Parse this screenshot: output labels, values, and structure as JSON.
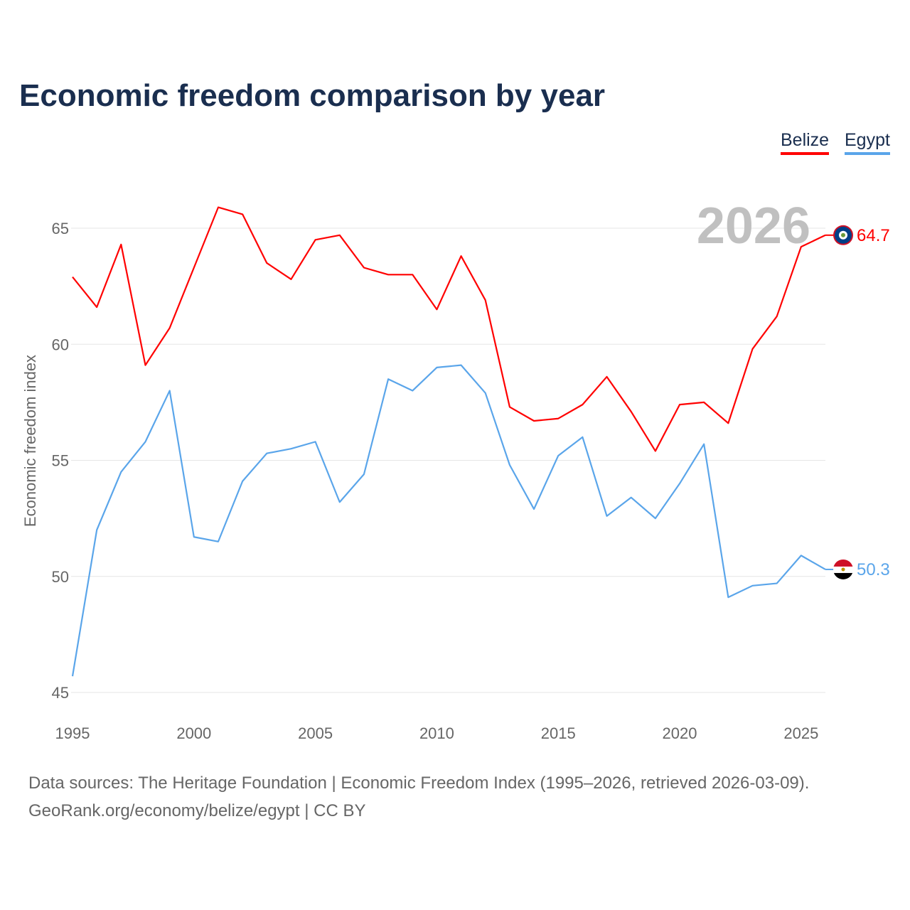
{
  "chart_data": {
    "type": "line",
    "title": "Economic freedom comparison by year",
    "xlabel": "",
    "ylabel": "Economic freedom index",
    "xlim": [
      1995,
      2026
    ],
    "ylim": [
      45,
      67
    ],
    "yticks": [
      45,
      50,
      55,
      60,
      65
    ],
    "xticks": [
      1995,
      2000,
      2005,
      2010,
      2015,
      2020,
      2025
    ],
    "grid": true,
    "legend_position": "top-right",
    "year_label": "2026",
    "x": [
      1995,
      1996,
      1997,
      1998,
      1999,
      2000,
      2001,
      2002,
      2003,
      2004,
      2005,
      2006,
      2007,
      2008,
      2009,
      2010,
      2011,
      2012,
      2013,
      2014,
      2015,
      2016,
      2017,
      2018,
      2019,
      2020,
      2021,
      2022,
      2023,
      2024,
      2025,
      2026
    ],
    "series": [
      {
        "name": "Belize",
        "color": "#ff0000",
        "end_label": "64.7",
        "values": [
          62.9,
          61.6,
          64.3,
          59.1,
          60.7,
          63.3,
          65.9,
          65.6,
          63.5,
          62.8,
          64.5,
          64.7,
          63.3,
          63.0,
          63.0,
          61.5,
          63.8,
          61.9,
          57.3,
          56.7,
          56.8,
          57.4,
          58.6,
          57.1,
          55.4,
          57.4,
          57.5,
          56.6,
          59.8,
          61.2,
          64.2,
          64.7
        ]
      },
      {
        "name": "Egypt",
        "color": "#5aa5ea",
        "end_label": "50.3",
        "values": [
          45.7,
          52.0,
          54.5,
          55.8,
          58.0,
          51.7,
          51.5,
          54.1,
          55.3,
          55.5,
          55.8,
          53.2,
          54.4,
          58.5,
          58.0,
          59.0,
          59.1,
          57.9,
          54.8,
          52.9,
          55.2,
          56.0,
          52.6,
          53.4,
          52.5,
          54.0,
          55.7,
          49.1,
          49.6,
          49.7,
          50.9,
          50.3
        ]
      }
    ]
  },
  "footer": {
    "line1": "Data sources: The Heritage Foundation | Economic Freedom Index (1995–2026, retrieved 2026-03-09).",
    "line2": "GeoRank.org/economy/belize/egypt | CC BY"
  }
}
